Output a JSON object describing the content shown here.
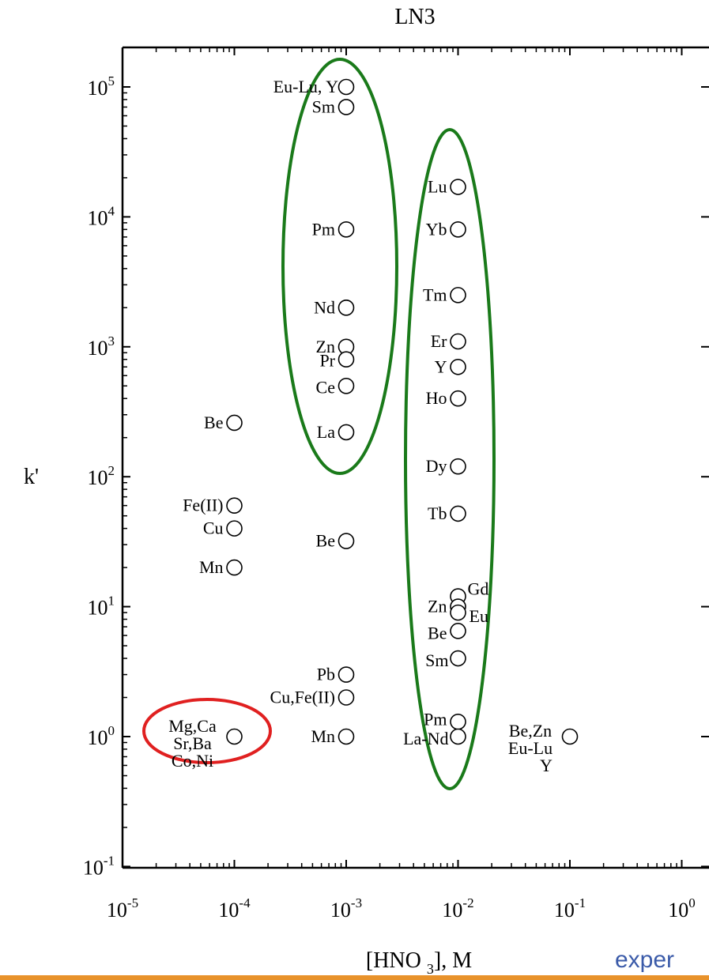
{
  "chart_data": {
    "type": "scatter",
    "title": "LN3",
    "xlabel": "[HNO3], M",
    "ylabel": "k'",
    "x_scale": "log",
    "y_scale": "log",
    "xlim": [
      1e-05,
      1
    ],
    "ylim": [
      0.1,
      200000
    ],
    "x_ticks": [
      {
        "base": "10",
        "exp": "-5"
      },
      {
        "base": "10",
        "exp": "-4"
      },
      {
        "base": "10",
        "exp": "-3"
      },
      {
        "base": "10",
        "exp": "-2"
      },
      {
        "base": "10",
        "exp": "-1"
      },
      {
        "base": "10",
        "exp": "0"
      }
    ],
    "y_ticks": [
      {
        "base": "10",
        "exp": "-1"
      },
      {
        "base": "10",
        "exp": "0"
      },
      {
        "base": "10",
        "exp": "1"
      },
      {
        "base": "10",
        "exp": "2"
      },
      {
        "base": "10",
        "exp": "3"
      },
      {
        "base": "10",
        "exp": "4"
      },
      {
        "base": "10",
        "exp": "5"
      }
    ],
    "points": [
      {
        "x": 0.0001,
        "y": 260,
        "label": "Be"
      },
      {
        "x": 0.0001,
        "y": 60,
        "label": "Fe(II)"
      },
      {
        "x": 0.0001,
        "y": 40,
        "label": "Cu"
      },
      {
        "x": 0.0001,
        "y": 20,
        "label": "Mn"
      },
      {
        "x": 0.0001,
        "y": 1,
        "label": "Mg,Ca\nSr,Ba\nCo,Ni"
      },
      {
        "x": 0.001,
        "y": 100000,
        "label": "Eu-Lu, Y"
      },
      {
        "x": 0.001,
        "y": 70000,
        "label": "Sm"
      },
      {
        "x": 0.001,
        "y": 8000,
        "label": "Pm"
      },
      {
        "x": 0.001,
        "y": 2000,
        "label": "Nd"
      },
      {
        "x": 0.001,
        "y": 1000,
        "label": "Zn"
      },
      {
        "x": 0.001,
        "y": 800,
        "label": "Pr"
      },
      {
        "x": 0.001,
        "y": 500,
        "label": "Ce"
      },
      {
        "x": 0.001,
        "y": 220,
        "label": "La"
      },
      {
        "x": 0.001,
        "y": 32,
        "label": "Be"
      },
      {
        "x": 0.001,
        "y": 3,
        "label": "Pb"
      },
      {
        "x": 0.001,
        "y": 2,
        "label": "Cu,Fe(II)"
      },
      {
        "x": 0.001,
        "y": 1,
        "label": "Mn"
      },
      {
        "x": 0.01,
        "y": 17000,
        "label": "Lu"
      },
      {
        "x": 0.01,
        "y": 8000,
        "label": "Yb"
      },
      {
        "x": 0.01,
        "y": 2500,
        "label": "Tm"
      },
      {
        "x": 0.01,
        "y": 1100,
        "label": "Er"
      },
      {
        "x": 0.01,
        "y": 700,
        "label": "Y"
      },
      {
        "x": 0.01,
        "y": 400,
        "label": "Ho"
      },
      {
        "x": 0.01,
        "y": 120,
        "label": "Dy"
      },
      {
        "x": 0.01,
        "y": 52,
        "label": "Tb"
      },
      {
        "x": 0.01,
        "y": 12,
        "label": "Gd"
      },
      {
        "x": 0.01,
        "y": 10,
        "label": "Zn"
      },
      {
        "x": 0.01,
        "y": 9,
        "label": "Eu"
      },
      {
        "x": 0.01,
        "y": 6.5,
        "label": "Be"
      },
      {
        "x": 0.01,
        "y": 4,
        "label": "Sm"
      },
      {
        "x": 0.01,
        "y": 1.3,
        "label": "Pm"
      },
      {
        "x": 0.01,
        "y": 1,
        "label": "La-Nd"
      },
      {
        "x": 0.1,
        "y": 1,
        "label": "Be,Zn\nEu-Lu\nY"
      }
    ],
    "highlights": [
      {
        "color": "#1a7a1a",
        "group": "x = 10^-3 lanthanides"
      },
      {
        "color": "#1a7a1a",
        "group": "x = 10^-2 lanthanides"
      },
      {
        "color": "#e02020",
        "group": "x = 10^-4 alkaline earths"
      }
    ],
    "grid": false,
    "legend": "none"
  },
  "watermark": "exper"
}
